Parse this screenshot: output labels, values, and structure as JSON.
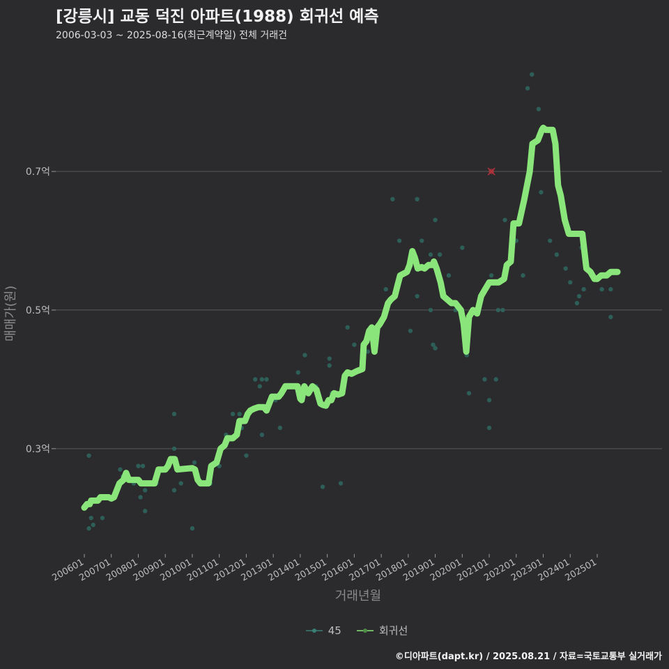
{
  "header": {
    "title": "[강릉시] 교동 덕진 아파트(1988) 회귀선 예측",
    "subtitle": "2006-03-03 ~ 2025-08-16(최근계약일) 전체 거래건"
  },
  "footer": {
    "credit": "©디아파트(dapt.kr) / 2025.08.21 / 자료=국토교통부 실거래가"
  },
  "colors": {
    "background": "#2b2a2d",
    "grid": "#5a595c",
    "line": "#8ae67a",
    "point": "#2e6b62",
    "outlier": "#b8333a"
  },
  "chart_data": {
    "type": "scatter",
    "xlabel": "거래년월",
    "ylabel": "매매가(원)",
    "x_range": [
      2006.0,
      2025.75
    ],
    "ylim": [
      0.148,
      0.875
    ],
    "y_ticks": [
      {
        "value": 0.3,
        "label": "0.3억"
      },
      {
        "value": 0.5,
        "label": "0.5억"
      },
      {
        "value": 0.7,
        "label": "0.7억"
      }
    ],
    "x_ticks": [
      {
        "value": 2006,
        "label": "200601"
      },
      {
        "value": 2007,
        "label": "200701"
      },
      {
        "value": 2008,
        "label": "200801"
      },
      {
        "value": 2009,
        "label": "200901"
      },
      {
        "value": 2010,
        "label": "201001"
      },
      {
        "value": 2011,
        "label": "201101"
      },
      {
        "value": 2012,
        "label": "201201"
      },
      {
        "value": 2013,
        "label": "201301"
      },
      {
        "value": 2014,
        "label": "201401"
      },
      {
        "value": 2015,
        "label": "201501"
      },
      {
        "value": 2016,
        "label": "201601"
      },
      {
        "value": 2017,
        "label": "201701"
      },
      {
        "value": 2018,
        "label": "201801"
      },
      {
        "value": 2019,
        "label": "201901"
      },
      {
        "value": 2020,
        "label": "202001"
      },
      {
        "value": 2021,
        "label": "202101"
      },
      {
        "value": 2022,
        "label": "202201"
      },
      {
        "value": 2023,
        "label": "202301"
      },
      {
        "value": 2024,
        "label": "202401"
      },
      {
        "value": 2025,
        "label": "202501"
      }
    ],
    "legend": [
      "45",
      "회귀선"
    ],
    "series": [
      {
        "name": "45",
        "kind": "points",
        "points": [
          [
            2006.17,
            0.185
          ],
          [
            2006.17,
            0.29
          ],
          [
            2006.25,
            0.2
          ],
          [
            2006.33,
            0.19
          ],
          [
            2006.67,
            0.2
          ],
          [
            2007.33,
            0.27
          ],
          [
            2007.42,
            0.26
          ],
          [
            2007.83,
            0.25
          ],
          [
            2008.0,
            0.275
          ],
          [
            2008.08,
            0.23
          ],
          [
            2008.17,
            0.275
          ],
          [
            2008.25,
            0.24
          ],
          [
            2008.25,
            0.21
          ],
          [
            2008.67,
            0.25
          ],
          [
            2009.0,
            0.27
          ],
          [
            2009.33,
            0.3
          ],
          [
            2009.33,
            0.35
          ],
          [
            2009.33,
            0.24
          ],
          [
            2009.58,
            0.25
          ],
          [
            2010.0,
            0.185
          ],
          [
            2010.08,
            0.28
          ],
          [
            2010.25,
            0.25
          ],
          [
            2010.67,
            0.25
          ],
          [
            2011.0,
            0.275
          ],
          [
            2011.25,
            0.32
          ],
          [
            2011.5,
            0.35
          ],
          [
            2011.75,
            0.35
          ],
          [
            2011.83,
            0.33
          ],
          [
            2012.0,
            0.29
          ],
          [
            2012.08,
            0.35
          ],
          [
            2012.33,
            0.4
          ],
          [
            2012.5,
            0.39
          ],
          [
            2012.58,
            0.32
          ],
          [
            2012.58,
            0.4
          ],
          [
            2012.75,
            0.4
          ],
          [
            2013.08,
            0.37
          ],
          [
            2013.25,
            0.33
          ],
          [
            2013.42,
            0.39
          ],
          [
            2013.92,
            0.41
          ],
          [
            2014.17,
            0.435
          ],
          [
            2014.58,
            0.39
          ],
          [
            2014.83,
            0.245
          ],
          [
            2015.08,
            0.43
          ],
          [
            2015.08,
            0.42
          ],
          [
            2015.17,
            0.38
          ],
          [
            2015.5,
            0.25
          ],
          [
            2015.58,
            0.39
          ],
          [
            2015.75,
            0.475
          ],
          [
            2016.0,
            0.45
          ],
          [
            2016.5,
            0.44
          ],
          [
            2016.92,
            0.48
          ],
          [
            2017.17,
            0.53
          ],
          [
            2017.42,
            0.66
          ],
          [
            2017.67,
            0.6
          ],
          [
            2018.08,
            0.47
          ],
          [
            2018.33,
            0.52
          ],
          [
            2018.33,
            0.66
          ],
          [
            2018.5,
            0.6
          ],
          [
            2018.83,
            0.58
          ],
          [
            2018.83,
            0.5
          ],
          [
            2018.92,
            0.45
          ],
          [
            2019.0,
            0.445
          ],
          [
            2019.0,
            0.63
          ],
          [
            2019.17,
            0.58
          ],
          [
            2019.5,
            0.55
          ],
          [
            2019.75,
            0.5
          ],
          [
            2020.0,
            0.59
          ],
          [
            2020.17,
            0.435
          ],
          [
            2020.25,
            0.38
          ],
          [
            2020.83,
            0.4
          ],
          [
            2021.0,
            0.33
          ],
          [
            2021.0,
            0.37
          ],
          [
            2021.08,
            0.55
          ],
          [
            2021.25,
            0.4
          ],
          [
            2021.33,
            0.5
          ],
          [
            2021.5,
            0.5
          ],
          [
            2021.58,
            0.63
          ],
          [
            2022.0,
            0.6
          ],
          [
            2022.25,
            0.55
          ],
          [
            2022.42,
            0.82
          ],
          [
            2022.58,
            0.84
          ],
          [
            2022.83,
            0.79
          ],
          [
            2022.92,
            0.67
          ],
          [
            2023.25,
            0.6
          ],
          [
            2023.5,
            0.58
          ],
          [
            2023.83,
            0.56
          ],
          [
            2024.0,
            0.54
          ],
          [
            2024.25,
            0.51
          ],
          [
            2024.33,
            0.52
          ],
          [
            2024.42,
            0.59
          ],
          [
            2024.5,
            0.53
          ],
          [
            2025.17,
            0.53
          ],
          [
            2025.5,
            0.49
          ],
          [
            2025.5,
            0.53
          ]
        ]
      },
      {
        "name": "회귀선",
        "kind": "line",
        "points": [
          [
            2006.0,
            0.215
          ],
          [
            2006.1,
            0.22
          ],
          [
            2006.2,
            0.22
          ],
          [
            2006.25,
            0.225
          ],
          [
            2006.5,
            0.225
          ],
          [
            2006.6,
            0.23
          ],
          [
            2006.9,
            0.23
          ],
          [
            2007.0,
            0.228
          ],
          [
            2007.1,
            0.23
          ],
          [
            2007.2,
            0.24
          ],
          [
            2007.3,
            0.25
          ],
          [
            2007.45,
            0.255
          ],
          [
            2007.55,
            0.265
          ],
          [
            2007.65,
            0.255
          ],
          [
            2008.0,
            0.255
          ],
          [
            2008.1,
            0.25
          ],
          [
            2008.6,
            0.25
          ],
          [
            2008.75,
            0.27
          ],
          [
            2009.0,
            0.27
          ],
          [
            2009.1,
            0.275
          ],
          [
            2009.2,
            0.285
          ],
          [
            2009.35,
            0.285
          ],
          [
            2009.45,
            0.27
          ],
          [
            2010.0,
            0.272
          ],
          [
            2010.1,
            0.27
          ],
          [
            2010.2,
            0.255
          ],
          [
            2010.3,
            0.25
          ],
          [
            2010.6,
            0.25
          ],
          [
            2010.7,
            0.275
          ],
          [
            2010.9,
            0.28
          ],
          [
            2011.05,
            0.3
          ],
          [
            2011.2,
            0.305
          ],
          [
            2011.3,
            0.315
          ],
          [
            2011.5,
            0.315
          ],
          [
            2011.65,
            0.32
          ],
          [
            2011.75,
            0.34
          ],
          [
            2011.95,
            0.34
          ],
          [
            2012.05,
            0.35
          ],
          [
            2012.15,
            0.355
          ],
          [
            2012.3,
            0.358
          ],
          [
            2012.45,
            0.36
          ],
          [
            2012.65,
            0.36
          ],
          [
            2012.75,
            0.355
          ],
          [
            2012.85,
            0.365
          ],
          [
            2012.95,
            0.375
          ],
          [
            2013.2,
            0.375
          ],
          [
            2013.3,
            0.38
          ],
          [
            2013.45,
            0.39
          ],
          [
            2013.7,
            0.39
          ],
          [
            2013.9,
            0.39
          ],
          [
            2014.0,
            0.372
          ],
          [
            2014.05,
            0.37
          ],
          [
            2014.15,
            0.39
          ],
          [
            2014.3,
            0.38
          ],
          [
            2014.45,
            0.39
          ],
          [
            2014.6,
            0.385
          ],
          [
            2014.75,
            0.365
          ],
          [
            2014.85,
            0.363
          ],
          [
            2014.95,
            0.362
          ],
          [
            2015.05,
            0.37
          ],
          [
            2015.15,
            0.37
          ],
          [
            2015.25,
            0.38
          ],
          [
            2015.4,
            0.378
          ],
          [
            2015.55,
            0.38
          ],
          [
            2015.65,
            0.405
          ],
          [
            2015.75,
            0.41
          ],
          [
            2015.9,
            0.408
          ],
          [
            2016.0,
            0.41
          ],
          [
            2016.1,
            0.412
          ],
          [
            2016.3,
            0.415
          ],
          [
            2016.35,
            0.45
          ],
          [
            2016.45,
            0.455
          ],
          [
            2016.55,
            0.47
          ],
          [
            2016.65,
            0.475
          ],
          [
            2016.75,
            0.44
          ],
          [
            2016.85,
            0.475
          ],
          [
            2016.95,
            0.48
          ],
          [
            2017.1,
            0.49
          ],
          [
            2017.25,
            0.51
          ],
          [
            2017.35,
            0.515
          ],
          [
            2017.5,
            0.52
          ],
          [
            2017.6,
            0.535
          ],
          [
            2017.7,
            0.55
          ],
          [
            2017.8,
            0.552
          ],
          [
            2017.95,
            0.555
          ],
          [
            2018.05,
            0.565
          ],
          [
            2018.15,
            0.585
          ],
          [
            2018.25,
            0.575
          ],
          [
            2018.35,
            0.56
          ],
          [
            2018.5,
            0.562
          ],
          [
            2018.6,
            0.56
          ],
          [
            2018.75,
            0.565
          ],
          [
            2018.9,
            0.565
          ],
          [
            2018.95,
            0.57
          ],
          [
            2019.05,
            0.56
          ],
          [
            2019.2,
            0.54
          ],
          [
            2019.3,
            0.52
          ],
          [
            2019.45,
            0.515
          ],
          [
            2019.6,
            0.51
          ],
          [
            2019.75,
            0.51
          ],
          [
            2019.85,
            0.505
          ],
          [
            2019.95,
            0.5
          ],
          [
            2020.05,
            0.48
          ],
          [
            2020.15,
            0.44
          ],
          [
            2020.25,
            0.49
          ],
          [
            2020.4,
            0.5
          ],
          [
            2020.55,
            0.495
          ],
          [
            2020.7,
            0.52
          ],
          [
            2020.85,
            0.53
          ],
          [
            2021.0,
            0.54
          ],
          [
            2021.2,
            0.54
          ],
          [
            2021.35,
            0.54
          ],
          [
            2021.55,
            0.545
          ],
          [
            2021.65,
            0.565
          ],
          [
            2021.8,
            0.57
          ],
          [
            2021.9,
            0.625
          ],
          [
            2022.1,
            0.625
          ],
          [
            2022.3,
            0.66
          ],
          [
            2022.5,
            0.7
          ],
          [
            2022.6,
            0.74
          ],
          [
            2022.8,
            0.745
          ],
          [
            2022.95,
            0.76
          ],
          [
            2023.0,
            0.763
          ],
          [
            2023.1,
            0.76
          ],
          [
            2023.35,
            0.76
          ],
          [
            2023.45,
            0.74
          ],
          [
            2023.55,
            0.68
          ],
          [
            2023.65,
            0.665
          ],
          [
            2023.8,
            0.63
          ],
          [
            2023.95,
            0.61
          ],
          [
            2024.1,
            0.61
          ],
          [
            2024.45,
            0.61
          ],
          [
            2024.6,
            0.56
          ],
          [
            2024.75,
            0.555
          ],
          [
            2024.9,
            0.545
          ],
          [
            2025.0,
            0.545
          ],
          [
            2025.15,
            0.55
          ],
          [
            2025.35,
            0.55
          ],
          [
            2025.5,
            0.555
          ],
          [
            2025.75,
            0.555
          ]
        ]
      }
    ],
    "outlier": {
      "x": 2021.08,
      "y": 0.7
    }
  }
}
